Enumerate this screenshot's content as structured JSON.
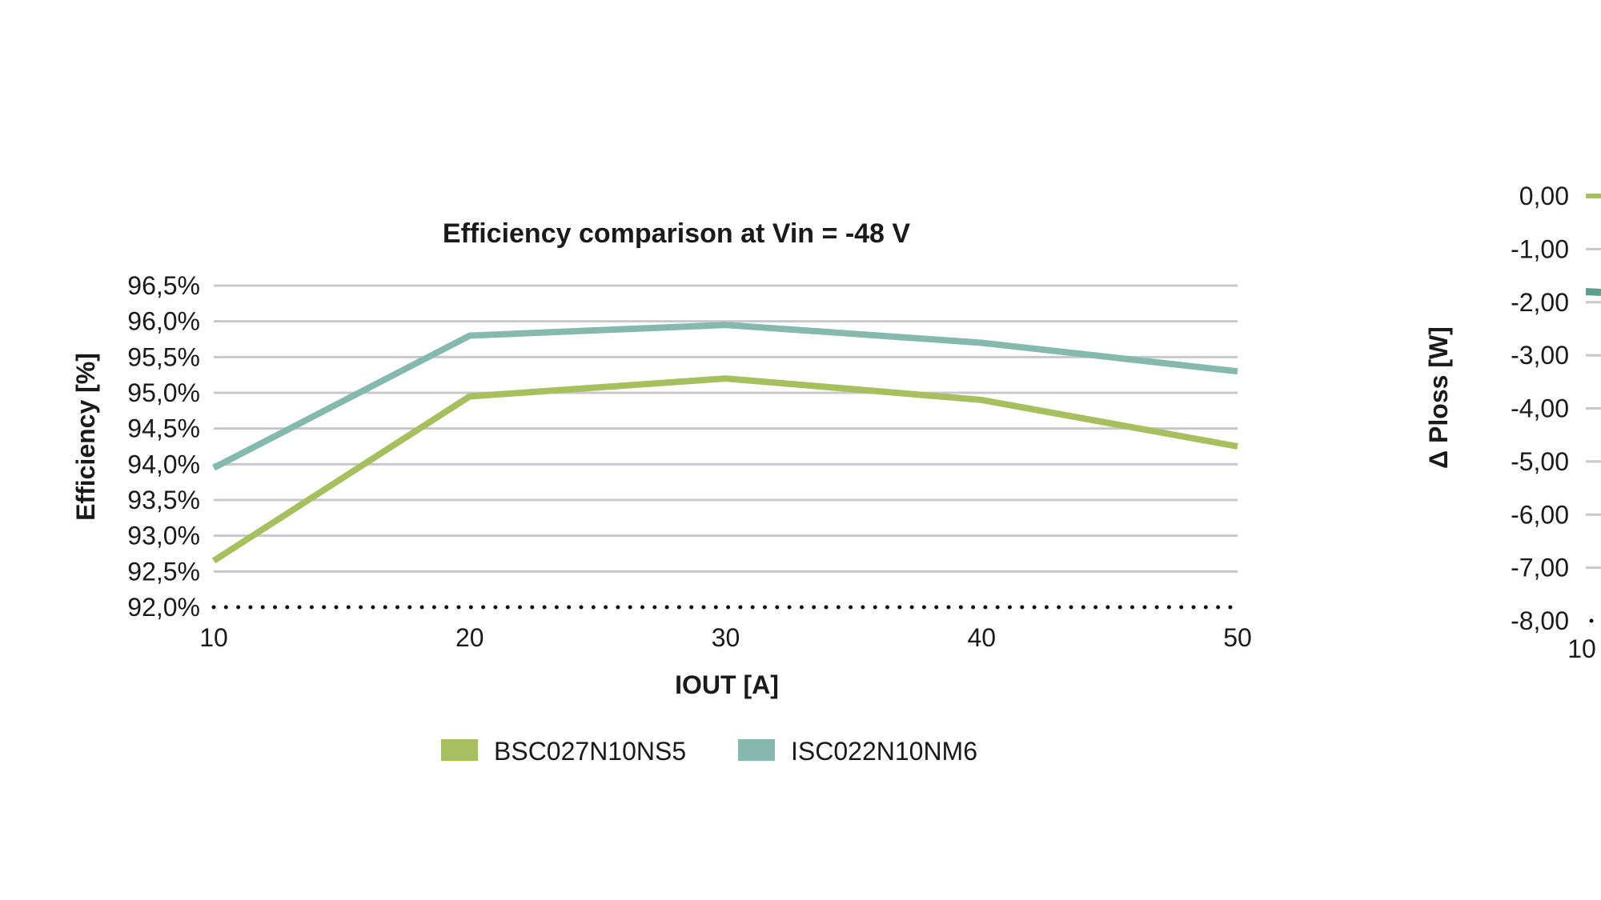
{
  "chart_data": [
    {
      "type": "line",
      "title": "Efficiency comparison at Vin = -48 V",
      "xlabel": "IOUT [A]",
      "ylabel": "Efficiency [%]",
      "x": [
        10,
        20,
        30,
        40,
        50
      ],
      "x_ticks": [
        "10",
        "20",
        "30",
        "40",
        "50"
      ],
      "y_ticks": [
        "92,0%",
        "92,5%",
        "93,0%",
        "93,5%",
        "94,0%",
        "94,5%",
        "95,0%",
        "95,5%",
        "96,0%",
        "96,5%"
      ],
      "ylim": [
        92.0,
        96.5
      ],
      "xlim": [
        10,
        50
      ],
      "grid": true,
      "legend_position": "bottom",
      "series": [
        {
          "name": "BSC027N10NS5",
          "color": "#a8bf5f",
          "values": [
            92.65,
            94.95,
            95.2,
            94.9,
            94.25
          ]
        },
        {
          "name": "ISC022N10NM6",
          "color": "#86b9ad",
          "values": [
            93.95,
            95.8,
            95.95,
            95.7,
            95.3
          ]
        }
      ]
    },
    {
      "type": "line",
      "title": "",
      "xlabel": "",
      "ylabel": "Δ Ploss [W]",
      "x": [
        10
      ],
      "x_ticks": [
        "10"
      ],
      "y_ticks": [
        "-8,00",
        "-7,00",
        "-6,00",
        "-5,00",
        "-4,00",
        "-3,00",
        "-2,00",
        "-1,00",
        "0,00"
      ],
      "ylim": [
        -8.0,
        0.0
      ],
      "grid": true,
      "partially_visible": true,
      "series": [
        {
          "color": "#a8bf5f",
          "values": [
            0.0
          ]
        },
        {
          "color": "#5e9e8c",
          "values": [
            -1.8
          ]
        }
      ]
    }
  ]
}
